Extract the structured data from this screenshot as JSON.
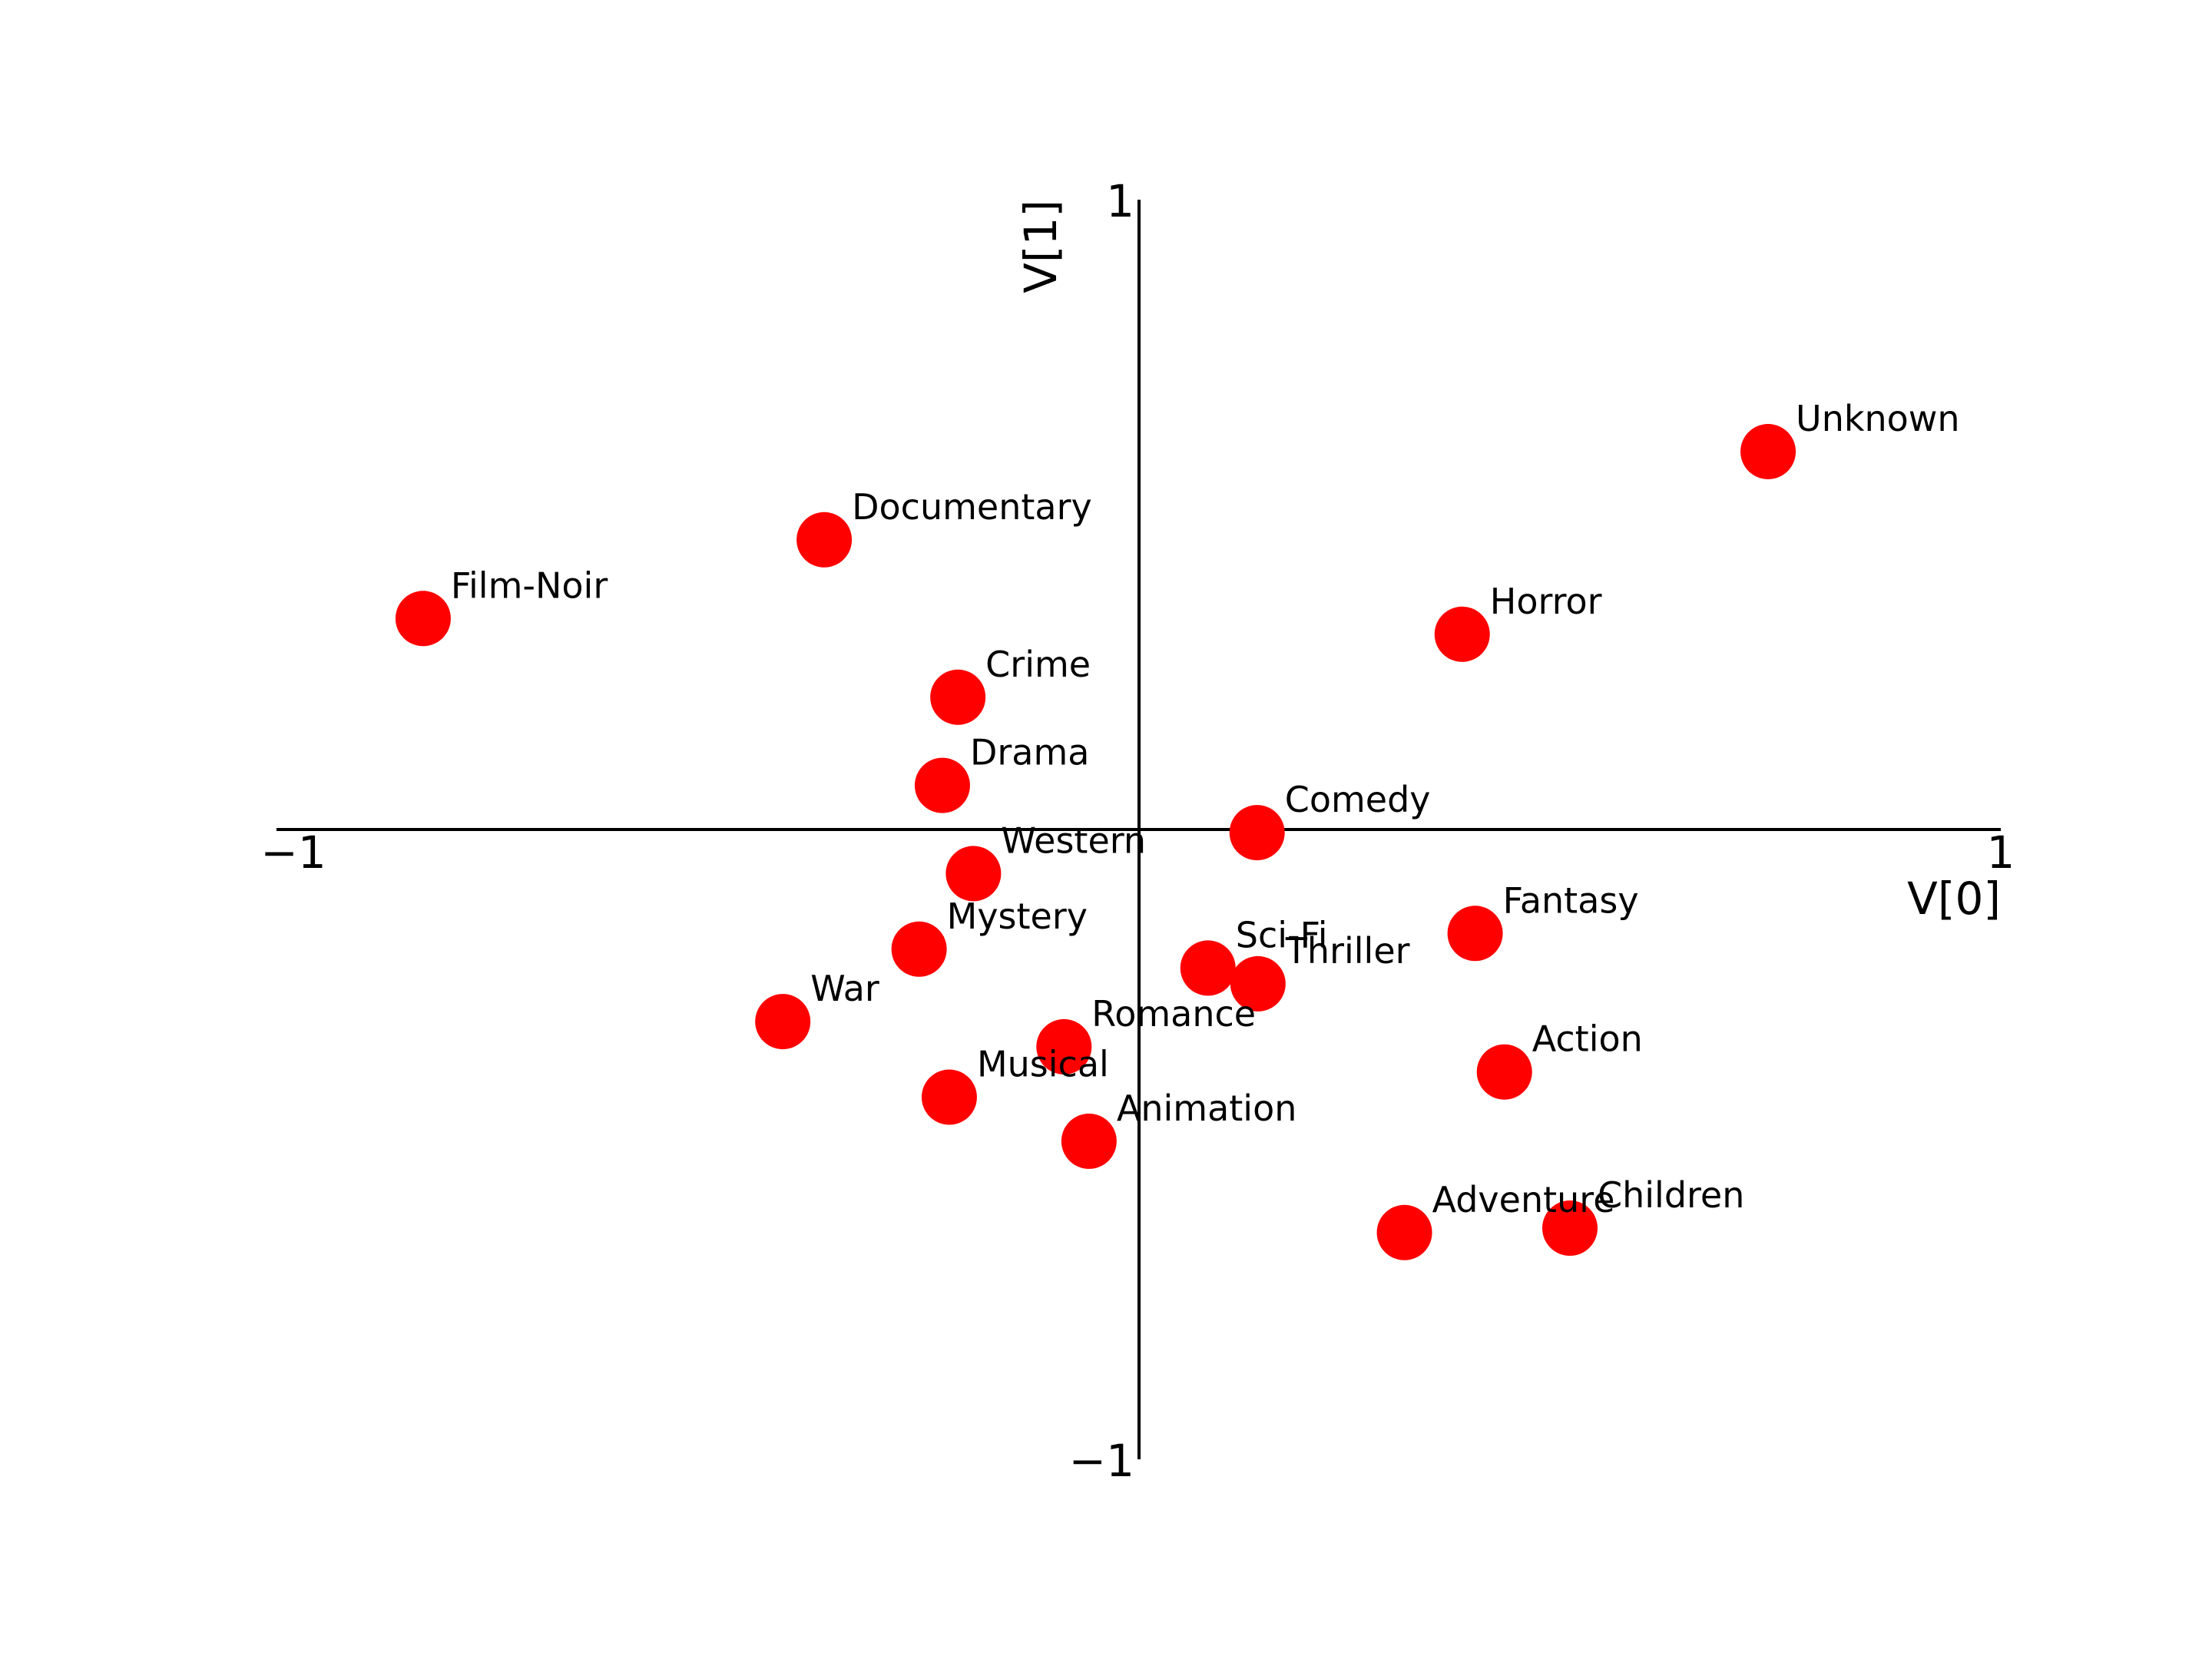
{
  "chart_data": {
    "type": "scatter",
    "title": "",
    "xlabel": "V[0]",
    "ylabel": "V[1]",
    "xlim": [
      -1,
      1
    ],
    "ylim": [
      -1,
      1
    ],
    "xticks": [
      "−1",
      "1"
    ],
    "yticks": [
      "1",
      "−1"
    ],
    "grid": false,
    "marker_color": "#ff0000",
    "text_color": "#000000",
    "points": [
      {
        "label": "Unknown",
        "x": 0.73,
        "y": 0.6
      },
      {
        "label": "Documentary",
        "x": -0.365,
        "y": 0.46
      },
      {
        "label": "Film-Noir",
        "x": -0.83,
        "y": 0.335
      },
      {
        "label": "Horror",
        "x": 0.375,
        "y": 0.31
      },
      {
        "label": "Crime",
        "x": -0.21,
        "y": 0.21
      },
      {
        "label": "Drama",
        "x": -0.228,
        "y": 0.07
      },
      {
        "label": "Comedy",
        "x": 0.137,
        "y": -0.005
      },
      {
        "label": "Western",
        "x": -0.192,
        "y": -0.07
      },
      {
        "label": "Fantasy",
        "x": 0.39,
        "y": -0.165
      },
      {
        "label": "Mystery",
        "x": -0.255,
        "y": -0.19
      },
      {
        "label": "Sci-Fi",
        "x": 0.08,
        "y": -0.22
      },
      {
        "label": "Thriller",
        "x": 0.138,
        "y": -0.245
      },
      {
        "label": "War",
        "x": -0.413,
        "y": -0.305
      },
      {
        "label": "Romance",
        "x": -0.087,
        "y": -0.345
      },
      {
        "label": "Action",
        "x": 0.424,
        "y": -0.385
      },
      {
        "label": "Musical",
        "x": -0.22,
        "y": -0.425
      },
      {
        "label": "Animation",
        "x": -0.058,
        "y": -0.495
      },
      {
        "label": "Adventure",
        "x": 0.308,
        "y": -0.64
      },
      {
        "label": "Children",
        "x": 0.5,
        "y": -0.633
      }
    ]
  }
}
